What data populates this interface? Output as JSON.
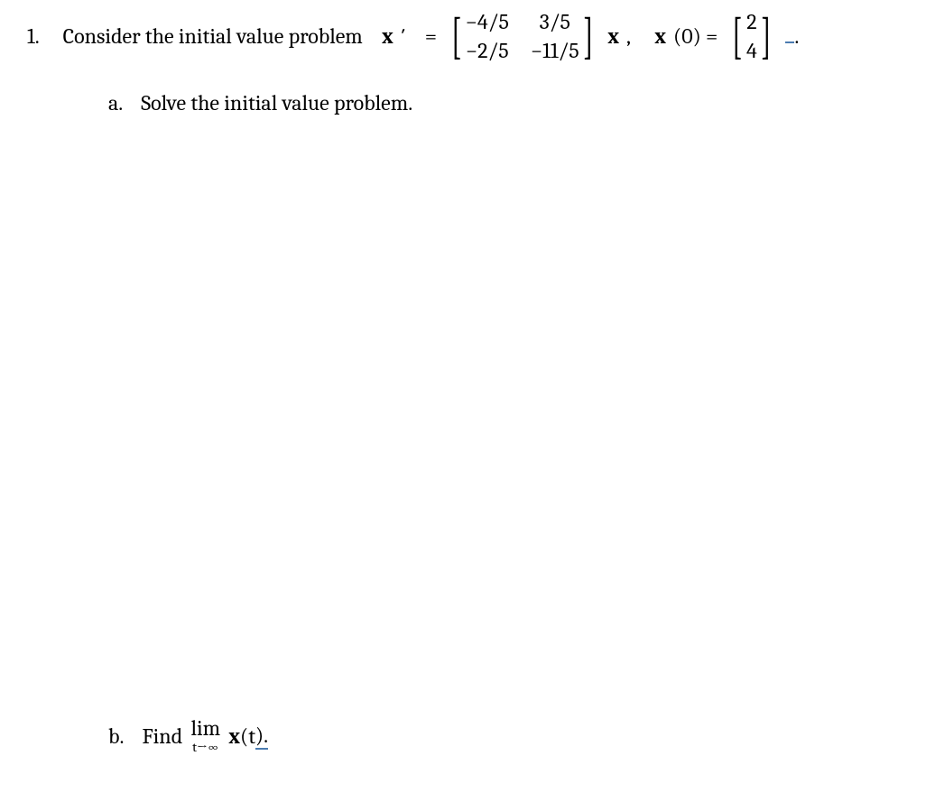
{
  "problem": {
    "number": "1.",
    "intro": "Consider the initial value problem",
    "lhs_var": "x",
    "prime": "′",
    "equals": "=",
    "matrix": {
      "r1c1": "−4/5",
      "r1c2": "3/5",
      "r2c1": "−2/5",
      "r2c2": "−11/5"
    },
    "after_matrix_var": "x",
    "comma": ",",
    "ic_var": "x",
    "ic_arg": "(0) =",
    "vector": {
      "r1": "2",
      "r2": "4"
    },
    "period": "."
  },
  "part_a": {
    "label": "a.",
    "text": "Solve the initial value problem."
  },
  "part_b": {
    "label": "b.",
    "prefix": "Find",
    "lim": "lim",
    "lim_sub": "t→∞",
    "var": "x",
    "arg": "(t",
    "close": ")."
  },
  "style": {
    "background": "#ffffff",
    "text_color": "#000000",
    "underline_color": "#4a7bb0",
    "font_size": 24
  }
}
